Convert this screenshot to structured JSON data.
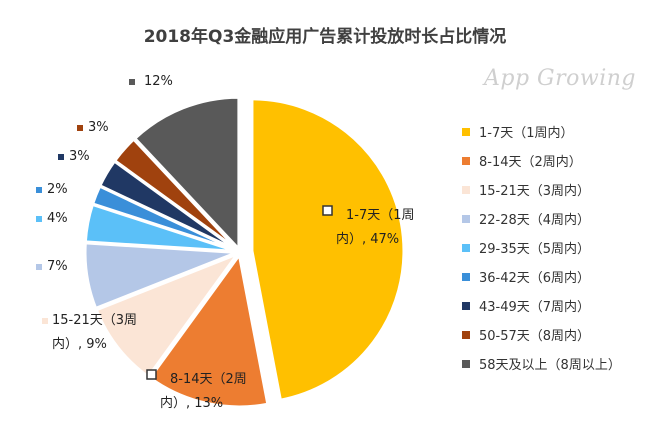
{
  "chart_data": {
    "type": "pie",
    "title": "2018年Q3金融应用广告累计投放时长占比情况",
    "watermark": "App Growing",
    "legend_position": "right",
    "slices": [
      {
        "name": "1-7天（1周内）",
        "value": 47,
        "color": "#FFC000",
        "label_lines": [
          "1-7天（1周",
          "内）, 47%"
        ]
      },
      {
        "name": "8-14天（2周内）",
        "value": 13,
        "color": "#ED7D31",
        "label_lines": [
          "8-14天（2周",
          "内）, 13%"
        ]
      },
      {
        "name": "15-21天（3周内）",
        "value": 9,
        "color": "#FBE5D6",
        "label_lines": [
          "15-21天（3周",
          "内）, 9%"
        ]
      },
      {
        "name": "22-28天（4周内）",
        "value": 7,
        "color": "#B4C7E7",
        "label_lines": [
          "7%"
        ]
      },
      {
        "name": "29-35天（5周内）",
        "value": 4,
        "color": "#5BC0F8",
        "label_lines": [
          "4%"
        ]
      },
      {
        "name": "36-42天（6周内）",
        "value": 2,
        "color": "#3A8FD9",
        "label_lines": [
          "2%"
        ]
      },
      {
        "name": "43-49天（7周内）",
        "value": 3,
        "color": "#203864",
        "label_lines": [
          "3%"
        ]
      },
      {
        "name": "50-57天（8周内）",
        "value": 3,
        "color": "#A0420E",
        "label_lines": [
          "3%"
        ]
      },
      {
        "name": "58天及以上（8周以上）",
        "value": 12,
        "color": "#595959",
        "label_lines": [
          "12%"
        ]
      }
    ]
  }
}
